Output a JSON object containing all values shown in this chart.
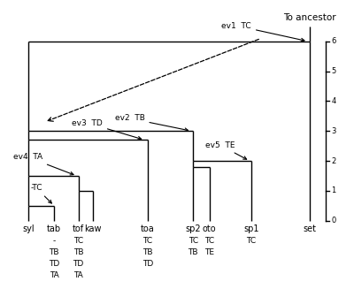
{
  "taxa": [
    "syl",
    "tab",
    "tof",
    "kaw",
    "toa",
    "sp2",
    "oto",
    "sp1",
    "set"
  ],
  "scale_ticks": [
    0,
    1,
    2,
    3,
    4,
    5,
    6
  ],
  "bg_color": "#ffffff",
  "line_color": "#000000"
}
